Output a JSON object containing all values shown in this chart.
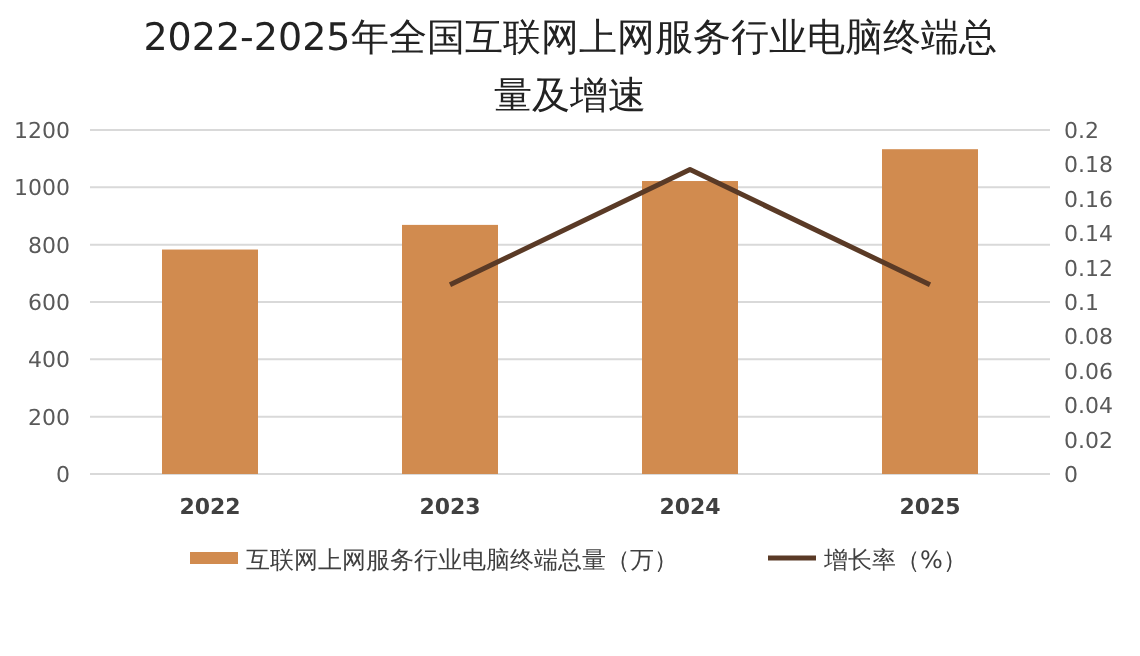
{
  "chart_data": {
    "type": "bar",
    "title": "2022-2025年全国互联网上网服务行业电脑终端总量及增速",
    "categories": [
      "2022",
      "2023",
      "2024",
      "2025"
    ],
    "series": [
      {
        "name": "互联网上网服务行业电脑终端总量（万）",
        "color": "#d18b4f",
        "values": [
          783,
          869,
          1022,
          1133
        ]
      },
      {
        "name": "增长率（%）",
        "type": "line",
        "axis": "y2",
        "color": "#5a3a26",
        "values": [
          null,
          0.11,
          0.177,
          0.11
        ]
      }
    ],
    "ylim": [
      0,
      1200
    ],
    "yticks": [
      0,
      200,
      400,
      600,
      800,
      1000,
      1200
    ],
    "y2lim": [
      0,
      0.2
    ],
    "y2ticks": [
      0,
      0.02,
      0.04,
      0.06,
      0.08,
      0.1,
      0.12,
      0.14,
      0.16,
      0.18,
      0.2
    ],
    "grid": "y",
    "legend": "bottom"
  }
}
